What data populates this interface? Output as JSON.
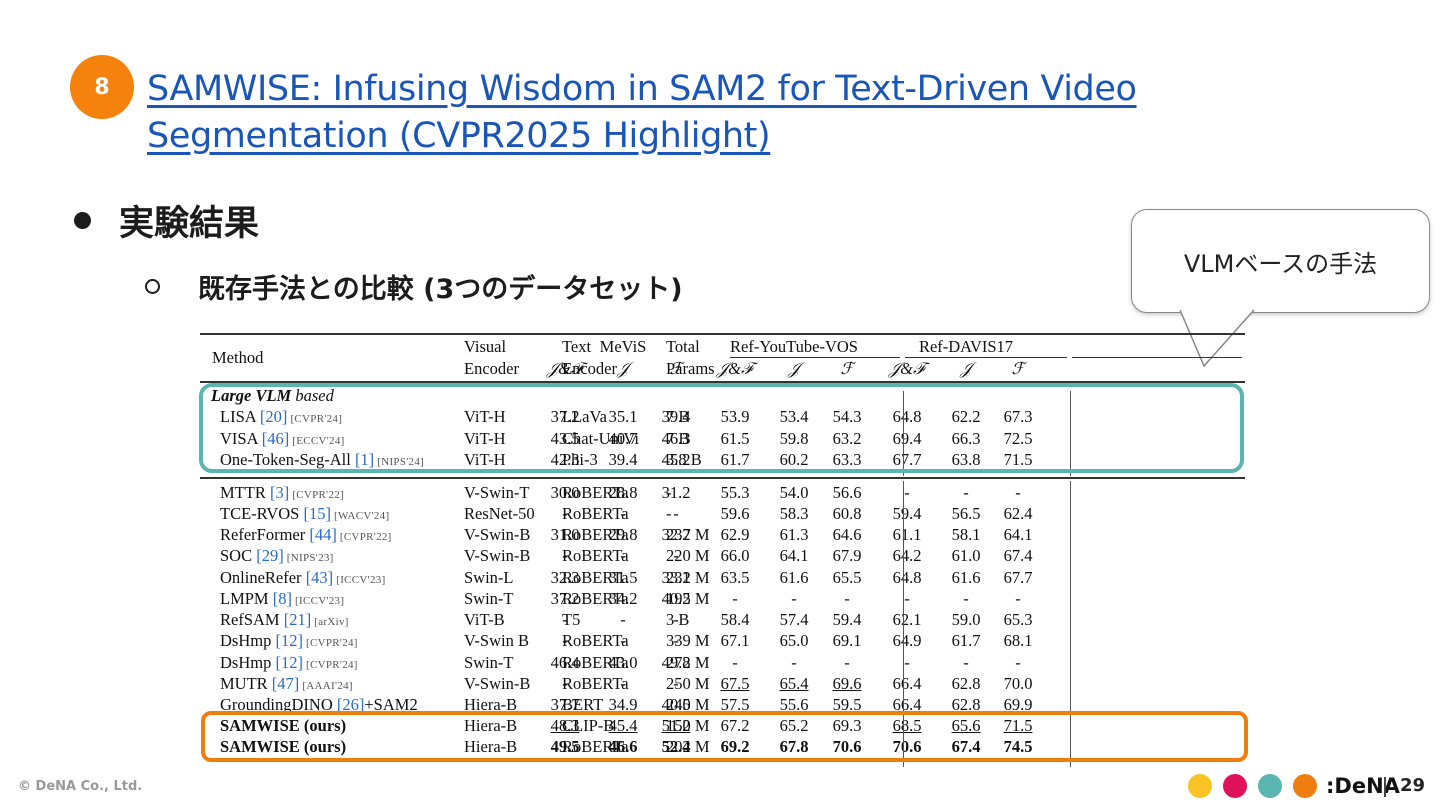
{
  "slide": {
    "number": "8",
    "title_line1": "SAMWISE: Infusing Wisdom in SAM2 for Text-Driven Video",
    "title_line2": "Segmentation (CVPR2025 Highlight)",
    "bullet1": "実験結果",
    "bullet2": "既存手法との比較 (3つのデータセット)",
    "callout": "VLMベースの手法"
  },
  "table": {
    "headers": {
      "method": "Method",
      "visual1": "Visual",
      "visual2": "Encoder",
      "text1": "Text",
      "text2": "Encoder",
      "total1": "Total",
      "total2": "Params",
      "mevis": "MeViS",
      "ytvos": "Ref-YouTube-VOS",
      "davis": "Ref-DAVIS17",
      "jf": "𝒥&ℱ",
      "j": "𝒥",
      "f": "ℱ"
    },
    "group_label_bold": "Large VLM",
    "group_label_rest": " based",
    "rows": [
      {
        "name": "LISA ",
        "ref": "[20]",
        "venue": " [CVPR'24]",
        "visual": "ViT-H",
        "text": "LLaVa",
        "params": "7 B",
        "vals": [
          "37.2",
          "35.1",
          "39.4",
          "53.9",
          "53.4",
          "54.3",
          "64.8",
          "62.2",
          "67.3"
        ]
      },
      {
        "name": "VISA ",
        "ref": "[46]",
        "venue": " [ECCV'24]",
        "visual": "ViT-H",
        "text": "Chat-UniVi",
        "params": "7 B",
        "vals": [
          "43.5",
          "40.7",
          "46.3",
          "61.5",
          "59.8",
          "63.2",
          "69.4",
          "66.3",
          "72.5"
        ]
      },
      {
        "name": "One-Token-Seg-All ",
        "ref": "[1]",
        "venue": " [NIPS'24]",
        "visual": "ViT-H",
        "text": "Phi-3",
        "params": "3.8 B",
        "vals": [
          "42.3",
          "39.4",
          "45.2",
          "61.7",
          "60.2",
          "63.3",
          "67.7",
          "63.8",
          "71.5"
        ]
      },
      {
        "name": "MTTR ",
        "ref": "[3]",
        "venue": " [CVPR'22]",
        "visual": "V-Swin-T",
        "text": "RoBERTa",
        "params": "-",
        "vals": [
          "30.0",
          "28.8",
          "31.2",
          "55.3",
          "54.0",
          "56.6",
          "-",
          "-",
          "-"
        ]
      },
      {
        "name": "TCE-RVOS ",
        "ref": "[15]",
        "venue": " [WACV'24]",
        "visual": "ResNet-50",
        "text": "RoBERTa",
        "params": "-",
        "vals": [
          "-",
          "-",
          "-",
          "59.6",
          "58.3",
          "60.8",
          "59.4",
          "56.5",
          "62.4"
        ]
      },
      {
        "name": "ReferFormer ",
        "ref": "[44]",
        "venue": " [CVPR'22]",
        "visual": "V-Swin-B",
        "text": "RoBERTa",
        "params": "237 M",
        "vals": [
          "31.0",
          "29.8",
          "32.2",
          "62.9",
          "61.3",
          "64.6",
          "61.1",
          "58.1",
          "64.1"
        ]
      },
      {
        "name": "SOC ",
        "ref": "[29]",
        "venue": " [NIPS'23]",
        "visual": "V-Swin-B",
        "text": "RoBERTa",
        "params": "220 M",
        "vals": [
          "-",
          "-",
          "-",
          "66.0",
          "64.1",
          "67.9",
          "64.2",
          "61.0",
          "67.4"
        ]
      },
      {
        "name": "OnlineRefer ",
        "ref": "[43]",
        "venue": " [ICCV'23]",
        "visual": "Swin-L",
        "text": "RoBERTa",
        "params": "232 M",
        "vals": [
          "32.3",
          "31.5",
          "33.1",
          "63.5",
          "61.6",
          "65.5",
          "64.8",
          "61.6",
          "67.7"
        ]
      },
      {
        "name": "LMPM ",
        "ref": "[8]",
        "venue": " [ICCV'23]",
        "visual": "Swin-T",
        "text": "RoBERTa",
        "params": "195 M",
        "vals": [
          "37.2",
          "34.2",
          "40.2",
          "-",
          "-",
          "-",
          "-",
          "-",
          "-"
        ]
      },
      {
        "name": "RefSAM ",
        "ref": "[21]",
        "venue": " [arXiv]",
        "visual": "ViT-B",
        "text": "T5",
        "params": "3 B",
        "vals": [
          "-",
          "-",
          "-",
          "58.4",
          "57.4",
          "59.4",
          "62.1",
          "59.0",
          "65.3"
        ]
      },
      {
        "name": "DsHmp ",
        "ref": "[12]",
        "venue": " [CVPR'24]",
        "visual": "V-Swin B",
        "text": "RoBERTa",
        "params": "339 M",
        "vals": [
          "-",
          "-",
          "-",
          "67.1",
          "65.0",
          "69.1",
          "64.9",
          "61.7",
          "68.1"
        ]
      },
      {
        "name": "DsHmp ",
        "ref": "[12]",
        "venue": " [CVPR'24]",
        "visual": "Swin-T",
        "text": "RoBERTa",
        "params": "272 M",
        "vals": [
          "46.4",
          "43.0",
          "49.8",
          "-",
          "-",
          "-",
          "-",
          "-",
          "-"
        ]
      },
      {
        "name": "MUTR ",
        "ref": "[47]",
        "venue": " [AAAI'24]",
        "visual": "V-Swin-B",
        "text": "RoBERTa",
        "params": "250 M",
        "vals": [
          "-",
          "-",
          "-",
          "67.5",
          "65.4",
          "69.6",
          "66.4",
          "62.8",
          "70.0"
        ],
        "underline": [
          3,
          4,
          5
        ]
      },
      {
        "name": "GroundingDINO ",
        "ref": "[26]",
        "venue": "+SAM2",
        "visual": "Hiera-B",
        "text": "BERT",
        "params": "240 M",
        "vals": [
          "37.7",
          "34.9",
          "40.5",
          "57.5",
          "55.6",
          "59.5",
          "66.4",
          "62.8",
          "69.9"
        ]
      },
      {
        "name": "SAMWISE ",
        "ref": "",
        "venue": "(ours)",
        "visual": "Hiera-B",
        "text": "CLIP-B",
        "params": "150 M",
        "vals": [
          "48.3",
          "45.4",
          "51.2",
          "67.2",
          "65.2",
          "69.3",
          "68.5",
          "65.6",
          "71.5"
        ],
        "underline": [
          0,
          1,
          2,
          6,
          7,
          8
        ]
      },
      {
        "name": "SAMWISE ",
        "ref": "",
        "venue": "(ours)",
        "visual": "Hiera-B",
        "text": "RoBERTa",
        "params": "202 M",
        "vals": [
          "49.5",
          "46.6",
          "52.4",
          "69.2",
          "67.8",
          "70.6",
          "70.6",
          "67.4",
          "74.5"
        ],
        "bold": [
          0,
          1,
          2,
          3,
          4,
          5,
          6,
          7,
          8
        ]
      }
    ]
  },
  "footer": {
    "copyright": "© DeNA Co., Ltd.",
    "logo": ":DeNA",
    "page": "29",
    "dot_colors": [
      "#f7c325",
      "#e0105a",
      "#5bb5b0",
      "#f07d10"
    ]
  },
  "colors": {
    "accent_orange": "#f5820d",
    "title_blue": "#1a56b8",
    "teal": "#5bb5b0",
    "orange": "#f07d10"
  }
}
